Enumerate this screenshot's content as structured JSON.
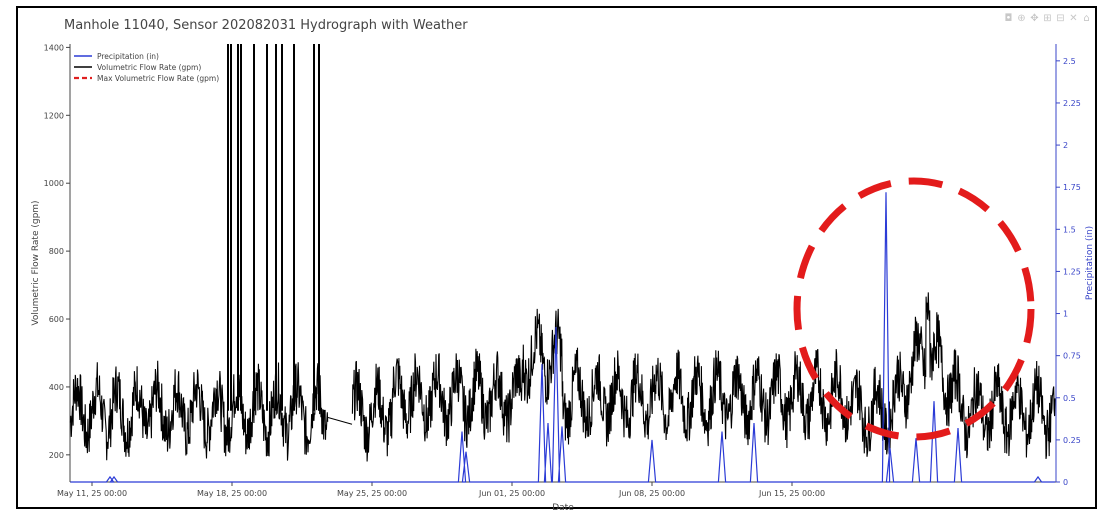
{
  "chart_data": {
    "type": "line",
    "title": "Manhole 11040, Sensor 202082031 Hydrograph with Weather",
    "xlabel": "Date",
    "ylabel": "Volumetric Flow Rate (gpm)",
    "y2label": "Precipitation (in)",
    "x_ticks": [
      "May 11, 25 00:00",
      "May 18, 25 00:00",
      "May 25, 25 00:00",
      "Jun 01, 25 00:00",
      "Jun 08, 25 00:00",
      "Jun 15, 25 00:00"
    ],
    "y_ticks": [
      200,
      400,
      600,
      800,
      1000,
      1200,
      1400
    ],
    "y2_ticks": [
      "0",
      "0.25",
      "0.5",
      "0.75",
      "1",
      "1.25",
      "1.5",
      "1.75",
      "2",
      "2.25",
      "2.5"
    ],
    "ylim": [
      120,
      1410
    ],
    "y2lim": [
      0,
      2.6
    ],
    "xlim_days": [
      -1.1,
      38.1
    ],
    "legend_position": "top-left",
    "series": [
      {
        "name": "Precipitation (in)",
        "color": "#2b3bd6",
        "axis": "right",
        "events": [
          [
            0.9,
            0.03
          ],
          [
            1.1,
            0.03
          ],
          [
            18.5,
            0.3
          ],
          [
            18.7,
            0.18
          ],
          [
            22.5,
            0.7
          ],
          [
            22.8,
            0.35
          ],
          [
            23.2,
            0.92
          ],
          [
            23.5,
            0.33
          ],
          [
            28,
            0.25
          ],
          [
            31.5,
            0.3
          ],
          [
            33.1,
            0.35
          ],
          [
            39.7,
            1.72
          ],
          [
            39.9,
            0.2
          ],
          [
            41.2,
            0.26
          ],
          [
            42.1,
            0.48
          ],
          [
            43.3,
            0.32
          ],
          [
            47.3,
            0.03
          ]
        ]
      },
      {
        "name": "Volumetric Flow Rate (gpm)",
        "color": "#000000",
        "axis": "left",
        "baseline_range": [
          200,
          500
        ],
        "spike_times": [
          6.8,
          6.95,
          7.3,
          7.45,
          8.1,
          8.75,
          9.2,
          9.5,
          10.1,
          11.1,
          11.35
        ],
        "spike_value": 1410,
        "elevated_period": [
          14.0,
          18.0,
          780
        ],
        "gap": [
          11.8,
          13.0
        ]
      },
      {
        "name": "Max Volumetric Flow Rate (gpm)",
        "color": "#e02020",
        "style": "dashed"
      }
    ]
  }
}
